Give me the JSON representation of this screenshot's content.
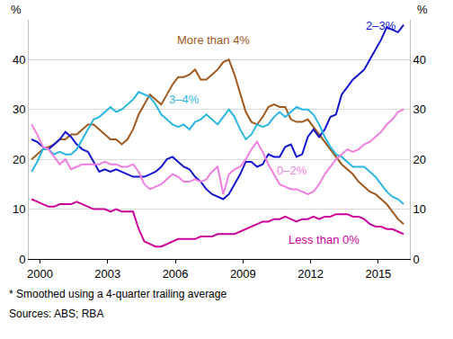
{
  "chart_data": {
    "type": "line",
    "ylabel": "%",
    "notes": [
      "* Smoothed using a 4-quarter trailing average",
      "Sources: ABS; RBA"
    ],
    "grid": true,
    "x": [
      2000.125,
      2000.375,
      2000.625,
      2000.875,
      2001.125,
      2001.375,
      2001.625,
      2001.875,
      2002.125,
      2002.375,
      2002.625,
      2002.875,
      2003.125,
      2003.375,
      2003.625,
      2003.875,
      2004.125,
      2004.375,
      2004.625,
      2004.875,
      2005.125,
      2005.375,
      2005.625,
      2005.875,
      2006.125,
      2006.375,
      2006.625,
      2006.875,
      2007.125,
      2007.375,
      2007.625,
      2007.875,
      2008.125,
      2008.375,
      2008.625,
      2008.875,
      2009.125,
      2009.375,
      2009.625,
      2009.875,
      2010.125,
      2010.375,
      2010.625,
      2010.875,
      2011.125,
      2011.375,
      2011.625,
      2011.875,
      2012.125,
      2012.375,
      2012.625,
      2012.875,
      2013.125,
      2013.375,
      2013.625,
      2013.875,
      2014.125,
      2014.375,
      2014.625,
      2014.875,
      2015.125,
      2015.375,
      2015.625,
      2015.875,
      2016.125,
      2016.375,
      2016.625
    ],
    "xlim": [
      2000,
      2016.9
    ],
    "xticks": [
      {
        "value": 2000.5,
        "label": "2000"
      },
      {
        "value": 2003.5,
        "label": "2003"
      },
      {
        "value": 2006.5,
        "label": "2006"
      },
      {
        "value": 2009.5,
        "label": "2009"
      },
      {
        "value": 2012.5,
        "label": "2012"
      },
      {
        "value": 2015.5,
        "label": "2015"
      }
    ],
    "ylim": [
      0,
      48
    ],
    "yticks": [
      0,
      10,
      20,
      30,
      40
    ],
    "y2lim": [
      0,
      48
    ],
    "y2ticks": [
      0,
      10,
      20,
      30,
      40
    ],
    "series": [
      {
        "name": "More than 4%",
        "color": "#a0581e",
        "values": [
          20,
          21,
          22,
          22.5,
          23,
          24,
          24,
          25,
          25,
          26,
          27,
          27,
          26,
          25,
          24,
          24,
          23,
          24,
          26,
          29,
          31,
          33,
          32,
          31,
          33,
          35,
          36.5,
          36.5,
          37,
          38,
          36,
          36,
          37,
          38,
          39.5,
          40,
          37,
          33,
          29.5,
          27.5,
          27,
          28.5,
          30.5,
          31,
          30.5,
          30.5,
          28,
          27.5,
          27.5,
          28,
          26.5,
          25,
          23.5,
          22,
          20.5,
          19,
          18,
          17,
          15.5,
          14.5,
          13.5,
          13,
          12,
          11,
          9.5,
          8,
          7
        ]
      },
      {
        "name": "2–3%",
        "color": "#1414d0",
        "values": [
          24,
          23.5,
          22.5,
          22,
          23,
          24,
          25.5,
          24.5,
          23,
          22,
          21.5,
          19.5,
          17.5,
          18,
          17.5,
          18,
          17.5,
          17,
          16.5,
          16.5,
          16.5,
          17,
          17.5,
          18.5,
          20,
          20.5,
          19.5,
          18.5,
          18,
          16.5,
          15.5,
          14,
          13,
          12.5,
          12,
          13,
          15,
          17,
          19.5,
          19.5,
          18.5,
          19,
          21,
          20.5,
          20.5,
          22.5,
          23,
          20.5,
          21,
          24.5,
          26,
          24.5,
          26,
          28.5,
          29,
          33,
          34.5,
          36,
          37,
          38,
          40,
          42,
          44,
          46.5,
          46,
          45.5,
          47
        ]
      },
      {
        "name": "3–4%",
        "color": "#29b6e0",
        "values": [
          17.5,
          19.5,
          22,
          22,
          21,
          21.5,
          21,
          21,
          22,
          24,
          26,
          28,
          28.5,
          29.5,
          30.5,
          29.5,
          30,
          31,
          32,
          33.5,
          33,
          32.5,
          31,
          29,
          28,
          27,
          26.5,
          27,
          26,
          27.5,
          28,
          29,
          28,
          27,
          28.5,
          30,
          28.5,
          26,
          24,
          25,
          27,
          26.5,
          27,
          28.5,
          29.5,
          28.5,
          29.5,
          30.5,
          30,
          30,
          29,
          27,
          24.5,
          22.5,
          21,
          20.5,
          19.5,
          18.5,
          18.5,
          18.5,
          17.5,
          16.5,
          15,
          13.5,
          12.5,
          12,
          11
        ]
      },
      {
        "name": "0–2%",
        "color": "#f07ee0",
        "values": [
          27,
          25,
          22.5,
          22,
          20.5,
          19,
          20,
          18,
          18.5,
          19,
          19,
          19,
          19,
          19.5,
          19,
          19,
          18.5,
          18.5,
          19,
          17.5,
          15,
          14,
          14.5,
          15,
          16,
          17,
          16.5,
          15.5,
          15.5,
          16,
          15.5,
          16,
          17.5,
          18.5,
          13,
          17,
          18,
          18.5,
          20,
          22,
          23.5,
          21.5,
          19,
          17,
          15,
          14.5,
          14,
          14,
          13.5,
          13,
          13.5,
          15,
          17,
          18.5,
          20,
          21,
          22,
          21.5,
          22,
          23,
          23.5,
          24.5,
          25.5,
          27,
          28,
          29.5,
          30
        ]
      },
      {
        "name": "Less than 0%",
        "color": "#cc0099",
        "values": [
          12,
          11.5,
          11,
          10.5,
          10.5,
          11,
          11,
          11,
          11.5,
          11,
          10.5,
          10,
          10,
          10,
          9.5,
          10,
          9.5,
          9.5,
          9.5,
          6,
          3.5,
          3,
          2.5,
          2.5,
          3,
          3.5,
          4,
          4,
          4,
          4,
          4.5,
          4.5,
          4.5,
          5,
          5,
          5,
          5,
          5.5,
          6,
          6.5,
          7,
          7.5,
          7.5,
          8,
          8,
          8.5,
          8,
          7.5,
          8,
          8,
          8.5,
          8,
          8.5,
          8.5,
          9,
          9,
          9,
          8.5,
          8.5,
          8,
          7,
          6.5,
          6.5,
          6,
          6,
          5.5,
          5
        ]
      }
    ]
  }
}
